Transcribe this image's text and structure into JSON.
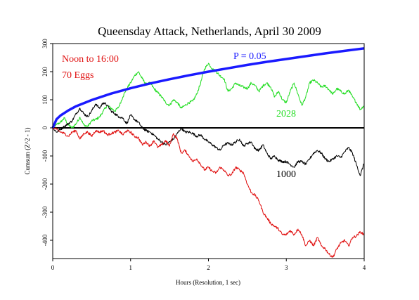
{
  "chart_data": {
    "type": "line",
    "title": "Queensday Attack, Netherlands, April 30 2009",
    "xlabel": "Hours (Resolution, 1 sec)",
    "ylabel": "Cumsum (Z^2 - 1)",
    "xlim": [
      0,
      4
    ],
    "ylim": [
      -465,
      300
    ],
    "x_ticks": [
      0,
      1,
      2,
      3,
      4
    ],
    "y_ticks": [
      300,
      200,
      100,
      0,
      -100,
      -200,
      -300,
      -400
    ],
    "grid": false,
    "annotations": {
      "period": "Noon to 16:00",
      "eggs": "70 Eggs",
      "significance": "P = 0.05",
      "label_2028": "2028",
      "label_1000": "1000"
    },
    "colors": {
      "p05": "#1a1aff",
      "series_2028": "#22dd22",
      "series_1000": "#000000",
      "series_red": "#e01010",
      "zero_line": "#000000"
    },
    "series": [
      {
        "name": "P = 0.05",
        "x": [
          0,
          0.05,
          0.1,
          0.2,
          0.3,
          0.5,
          0.75,
          1.0,
          1.25,
          1.5,
          1.75,
          2.0,
          2.25,
          2.5,
          2.75,
          3.0,
          3.25,
          3.5,
          3.75,
          4.0
        ],
        "y": [
          0,
          31,
          44,
          62,
          77,
          99,
          122,
          141,
          158,
          173,
          187,
          200,
          212,
          224,
          235,
          245,
          255,
          265,
          274,
          283
        ]
      },
      {
        "name": "2028",
        "x": [
          0,
          0.05,
          0.1,
          0.15,
          0.2,
          0.25,
          0.3,
          0.35,
          0.4,
          0.45,
          0.5,
          0.55,
          0.6,
          0.65,
          0.7,
          0.75,
          0.8,
          0.85,
          0.9,
          0.95,
          1.0,
          1.05,
          1.1,
          1.15,
          1.2,
          1.25,
          1.3,
          1.35,
          1.4,
          1.45,
          1.5,
          1.55,
          1.6,
          1.65,
          1.7,
          1.75,
          1.8,
          1.85,
          1.9,
          1.95,
          2.0,
          2.05,
          2.1,
          2.15,
          2.2,
          2.25,
          2.3,
          2.35,
          2.4,
          2.45,
          2.5,
          2.55,
          2.6,
          2.65,
          2.7,
          2.75,
          2.8,
          2.85,
          2.9,
          2.95,
          3.0,
          3.05,
          3.1,
          3.15,
          3.2,
          3.25,
          3.3,
          3.35,
          3.4,
          3.45,
          3.5,
          3.55,
          3.6,
          3.65,
          3.7,
          3.75,
          3.8,
          3.85,
          3.9,
          3.95,
          4.0
        ],
        "y": [
          0,
          12,
          20,
          35,
          10,
          0,
          15,
          38,
          10,
          5,
          25,
          30,
          38,
          60,
          80,
          70,
          60,
          75,
          110,
          140,
          160,
          185,
          200,
          175,
          155,
          160,
          140,
          125,
          110,
          90,
          80,
          100,
          90,
          70,
          80,
          90,
          95,
          120,
          160,
          210,
          230,
          210,
          200,
          185,
          175,
          130,
          140,
          160,
          150,
          145,
          140,
          160,
          150,
          130,
          150,
          160,
          145,
          110,
          130,
          100,
          90,
          130,
          160,
          120,
          80,
          110,
          160,
          170,
          160,
          145,
          150,
          135,
          120,
          140,
          130,
          120,
          135,
          110,
          90,
          65,
          80
        ]
      },
      {
        "name": "1000",
        "x": [
          0,
          0.05,
          0.1,
          0.15,
          0.2,
          0.25,
          0.3,
          0.35,
          0.4,
          0.45,
          0.5,
          0.55,
          0.6,
          0.65,
          0.7,
          0.75,
          0.8,
          0.85,
          0.9,
          0.95,
          1.0,
          1.05,
          1.1,
          1.15,
          1.2,
          1.25,
          1.3,
          1.35,
          1.4,
          1.45,
          1.5,
          1.55,
          1.6,
          1.65,
          1.7,
          1.75,
          1.8,
          1.85,
          1.9,
          1.95,
          2.0,
          2.05,
          2.1,
          2.15,
          2.2,
          2.25,
          2.3,
          2.35,
          2.4,
          2.45,
          2.5,
          2.55,
          2.6,
          2.65,
          2.7,
          2.75,
          2.8,
          2.85,
          2.9,
          2.95,
          3.0,
          3.05,
          3.1,
          3.15,
          3.2,
          3.25,
          3.3,
          3.35,
          3.4,
          3.45,
          3.5,
          3.55,
          3.6,
          3.65,
          3.7,
          3.75,
          3.8,
          3.85,
          3.9,
          3.95,
          4.0
        ],
        "y": [
          0,
          -15,
          -5,
          5,
          15,
          25,
          50,
          70,
          50,
          40,
          60,
          85,
          70,
          90,
          80,
          60,
          50,
          40,
          35,
          15,
          45,
          30,
          20,
          0,
          -10,
          -15,
          -25,
          -40,
          -50,
          -60,
          -50,
          -40,
          -20,
          0,
          -15,
          -15,
          -20,
          -30,
          -25,
          -40,
          -50,
          -60,
          -70,
          -80,
          -60,
          -55,
          -60,
          -50,
          -40,
          -65,
          -55,
          -50,
          -75,
          -80,
          -60,
          -90,
          -110,
          -100,
          -115,
          -120,
          -120,
          -130,
          -140,
          -120,
          -120,
          -130,
          -110,
          -90,
          -80,
          -90,
          -110,
          -120,
          -110,
          -100,
          -105,
          -85,
          -70,
          -90,
          -130,
          -170,
          -125
        ]
      },
      {
        "name": "red",
        "x": [
          0,
          0.05,
          0.1,
          0.15,
          0.2,
          0.25,
          0.3,
          0.35,
          0.4,
          0.45,
          0.5,
          0.55,
          0.6,
          0.65,
          0.7,
          0.75,
          0.8,
          0.85,
          0.9,
          0.95,
          1.0,
          1.05,
          1.1,
          1.15,
          1.2,
          1.25,
          1.3,
          1.35,
          1.4,
          1.45,
          1.5,
          1.55,
          1.6,
          1.65,
          1.7,
          1.75,
          1.8,
          1.85,
          1.9,
          1.95,
          2.0,
          2.05,
          2.1,
          2.15,
          2.2,
          2.25,
          2.3,
          2.35,
          2.4,
          2.45,
          2.5,
          2.55,
          2.6,
          2.65,
          2.7,
          2.75,
          2.8,
          2.85,
          2.9,
          2.95,
          3.0,
          3.05,
          3.1,
          3.15,
          3.2,
          3.25,
          3.3,
          3.35,
          3.4,
          3.45,
          3.5,
          3.55,
          3.6,
          3.65,
          3.7,
          3.75,
          3.8,
          3.85,
          3.9,
          3.95,
          4.0
        ],
        "y": [
          0,
          -5,
          -15,
          -20,
          -30,
          -15,
          -10,
          -40,
          -20,
          -15,
          -30,
          -10,
          -15,
          -10,
          -25,
          -20,
          -15,
          -10,
          -25,
          -10,
          -15,
          -30,
          -35,
          -60,
          -50,
          -65,
          -45,
          -70,
          -60,
          -45,
          -65,
          -20,
          -40,
          -90,
          -80,
          -100,
          -120,
          -110,
          -130,
          -150,
          -140,
          -155,
          -160,
          -140,
          -150,
          -170,
          -165,
          -140,
          -150,
          -160,
          -200,
          -230,
          -240,
          -260,
          -300,
          -320,
          -340,
          -350,
          -360,
          -380,
          -380,
          -365,
          -380,
          -360,
          -380,
          -420,
          -400,
          -420,
          -390,
          -420,
          -430,
          -450,
          -460,
          -430,
          -410,
          -400,
          -420,
          -390,
          -385,
          -370,
          -380
        ]
      }
    ]
  }
}
